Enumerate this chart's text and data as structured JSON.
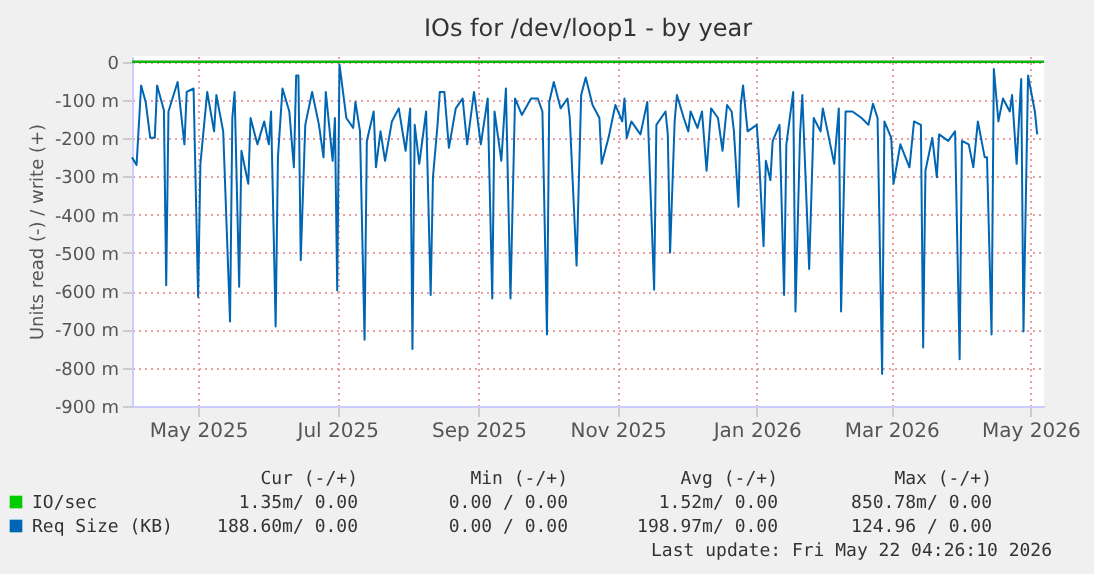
{
  "chart_data": {
    "type": "line",
    "title": "IOs for /dev/loop1 - by year",
    "ylabel": "Units read (-) / write (+)",
    "xlim": [
      "2025-04-17",
      "2026-05-22"
    ],
    "xticks": [
      {
        "value": "2025-05-16",
        "label": "May 2025"
      },
      {
        "value": "2025-07-16",
        "label": "Jul 2025"
      },
      {
        "value": "2025-09-16",
        "label": "Sep 2025"
      },
      {
        "value": "2025-11-16",
        "label": "Nov 2025"
      },
      {
        "value": "2026-01-16",
        "label": "Jan 2026"
      },
      {
        "value": "2026-03-16",
        "label": "Mar 2026"
      },
      {
        "value": "2026-05-16",
        "label": "May 2026"
      }
    ],
    "ylim": [
      -900,
      15
    ],
    "yticks": [
      0,
      {
        "value": -100,
        "label": "-100 m"
      },
      {
        "value": -200,
        "label": "-200 m"
      },
      {
        "value": -300,
        "label": "-300 m"
      },
      {
        "value": -400,
        "label": "-400 m"
      },
      {
        "value": -500,
        "label": "-500 m"
      },
      {
        "value": -600,
        "label": "-600 m"
      },
      {
        "value": -700,
        "label": "-700 m"
      },
      {
        "value": -800,
        "label": "-800 m"
      },
      {
        "value": -900,
        "label": "-900 m"
      }
    ],
    "grid": true,
    "legend": "bottom",
    "marker": "none",
    "line_style": "solid",
    "series": [
      {
        "name": "IO/sec",
        "color": "#00cc00",
        "x": [
          "2025-04-17",
          "2026-05-22"
        ],
        "values": [
          0,
          0
        ]
      },
      {
        "name": "Req Size (KB)",
        "color": "#0066b3",
        "x": [
          "2025-04-17",
          "2025-04-19",
          "2025-04-21",
          "2025-04-23",
          "2025-04-25",
          "2025-04-27",
          "2025-04-28",
          "2025-05-01",
          "2025-05-02",
          "2025-05-03",
          "2025-05-07",
          "2025-05-10",
          "2025-05-11",
          "2025-05-14",
          "2025-05-16",
          "2025-05-17",
          "2025-05-20",
          "2025-05-23",
          "2025-05-24",
          "2025-05-27",
          "2025-05-30",
          "2025-05-31",
          "2025-06-01",
          "2025-06-03",
          "2025-06-04",
          "2025-06-07",
          "2025-06-08",
          "2025-06-11",
          "2025-06-14",
          "2025-06-16",
          "2025-06-17",
          "2025-06-19",
          "2025-06-20",
          "2025-06-22",
          "2025-06-25",
          "2025-06-27",
          "2025-06-28",
          "2025-06-29",
          "2025-06-30",
          "2025-07-02",
          "2025-07-05",
          "2025-07-08",
          "2025-07-10",
          "2025-07-11",
          "2025-07-14",
          "2025-07-15",
          "2025-07-16",
          "2025-07-17",
          "2025-07-20",
          "2025-07-23",
          "2025-07-24",
          "2025-07-26",
          "2025-07-28",
          "2025-07-29",
          "2025-08-01",
          "2025-08-02",
          "2025-08-04",
          "2025-08-06",
          "2025-08-09",
          "2025-08-12",
          "2025-08-15",
          "2025-08-17",
          "2025-08-18",
          "2025-08-19",
          "2025-08-21",
          "2025-08-24",
          "2025-08-26",
          "2025-08-27",
          "2025-08-29",
          "2025-08-30",
          "2025-09-01",
          "2025-09-03",
          "2025-09-06",
          "2025-09-09",
          "2025-09-11",
          "2025-09-14",
          "2025-09-17",
          "2025-09-20",
          "2025-09-22",
          "2025-09-23",
          "2025-09-26",
          "2025-09-28",
          "2025-09-30",
          "2025-10-02",
          "2025-10-05",
          "2025-10-09",
          "2025-10-12",
          "2025-10-14",
          "2025-10-16",
          "2025-10-17",
          "2025-10-19",
          "2025-10-22",
          "2025-10-25",
          "2025-10-26",
          "2025-10-29",
          "2025-10-31",
          "2025-11-02",
          "2025-11-05",
          "2025-11-08",
          "2025-11-09",
          "2025-11-12",
          "2025-11-15",
          "2025-11-18",
          "2025-11-19",
          "2025-11-20",
          "2025-11-22",
          "2025-11-26",
          "2025-11-29",
          "2025-12-02",
          "2025-12-03",
          "2025-12-07",
          "2025-12-08",
          "2025-12-09",
          "2025-12-11",
          "2025-12-12",
          "2025-12-15",
          "2025-12-17",
          "2025-12-18",
          "2025-12-21",
          "2025-12-23",
          "2025-12-25",
          "2025-12-27",
          "2025-12-30",
          "2026-01-01",
          "2026-01-03",
          "2026-01-05",
          "2026-01-06",
          "2026-01-08",
          "2026-01-09",
          "2026-01-10",
          "2026-01-12",
          "2026-01-16",
          "2026-01-17",
          "2026-01-19",
          "2026-01-20",
          "2026-01-22",
          "2026-01-23",
          "2026-01-26",
          "2026-01-28",
          "2026-01-29",
          "2026-02-01",
          "2026-02-02",
          "2026-02-04",
          "2026-02-05",
          "2026-02-08",
          "2026-02-10",
          "2026-02-13",
          "2026-02-14",
          "2026-02-19",
          "2026-02-21",
          "2026-02-22",
          "2026-02-24",
          "2026-02-27",
          "2026-03-03",
          "2026-03-06",
          "2026-03-08",
          "2026-03-10",
          "2026-03-12",
          "2026-03-13",
          "2026-03-16",
          "2026-03-17",
          "2026-03-20",
          "2026-03-24",
          "2026-03-26",
          "2026-03-29",
          "2026-03-30",
          "2026-03-31",
          "2026-04-03",
          "2026-04-05",
          "2026-04-06",
          "2026-04-10",
          "2026-04-13",
          "2026-04-15",
          "2026-04-16",
          "2026-04-19",
          "2026-04-21",
          "2026-04-23",
          "2026-04-26",
          "2026-04-27",
          "2026-04-29",
          "2026-04-30",
          "2026-05-02",
          "2026-05-04",
          "2026-05-07",
          "2026-05-08",
          "2026-05-10",
          "2026-05-12",
          "2026-05-13",
          "2026-05-15",
          "2026-05-18",
          "2026-05-19"
        ],
        "values": [
          -250,
          -270,
          -62,
          -105,
          -199,
          -199,
          -62,
          -127,
          -584,
          -130,
          -53,
          -216,
          -79,
          -70,
          -615,
          -267,
          -79,
          -182,
          -87,
          -182,
          -679,
          -147,
          -79,
          -588,
          -233,
          -319,
          -147,
          -216,
          -156,
          -216,
          -130,
          -692,
          -250,
          -70,
          -130,
          -276,
          -36,
          -36,
          -519,
          -165,
          -79,
          -165,
          -250,
          -79,
          -259,
          -147,
          -598,
          -7,
          -147,
          -173,
          -105,
          -182,
          -727,
          -207,
          -130,
          -276,
          -182,
          -259,
          -156,
          -122,
          -233,
          -122,
          -751,
          -165,
          -267,
          -130,
          -610,
          -302,
          -165,
          -79,
          -79,
          -225,
          -122,
          -96,
          -216,
          -79,
          -216,
          -96,
          -619,
          -130,
          -259,
          -70,
          -619,
          -96,
          -139,
          -96,
          -96,
          -130,
          -713,
          -105,
          -53,
          -122,
          -96,
          -147,
          -533,
          -87,
          -41,
          -113,
          -147,
          -267,
          -199,
          -113,
          -156,
          -96,
          -199,
          -156,
          -190,
          -105,
          -596,
          -165,
          -130,
          -190,
          -499,
          -156,
          -87,
          -147,
          -182,
          -130,
          -173,
          -130,
          -285,
          -122,
          -147,
          -233,
          -113,
          -130,
          -182,
          -379,
          -113,
          -62,
          -182,
          -165,
          -250,
          -482,
          -259,
          -310,
          -207,
          -165,
          -610,
          -216,
          -79,
          -653,
          -190,
          -87,
          -542,
          -147,
          -182,
          -122,
          -267,
          -122,
          -653,
          -130,
          -130,
          -147,
          -165,
          -110,
          -147,
          -816,
          -156,
          -199,
          -319,
          -216,
          -276,
          -156,
          -165,
          -747,
          -285,
          -199,
          -302,
          -190,
          -207,
          -182,
          -778,
          -207,
          -216,
          -276,
          -156,
          -250,
          -250,
          -713,
          -19,
          -156,
          -96,
          -130,
          -87,
          -267,
          -45,
          -705,
          -36,
          -130,
          -190
        ]
      }
    ],
    "annotations": [
      "Cur (-/+)",
      "Min (-/+)",
      "Avg (-/+)",
      "Max (-/+)",
      "1.35m/  0.00",
      "0.00 /  0.00",
      "1.52m/  0.00",
      "850.78m/  0.00",
      "188.60m/  0.00",
      "0.00 /  0.00",
      "198.97m/  0.00",
      "124.96 /  0.00",
      "Last update: Fri May 22 04:26:10 2026"
    ]
  }
}
